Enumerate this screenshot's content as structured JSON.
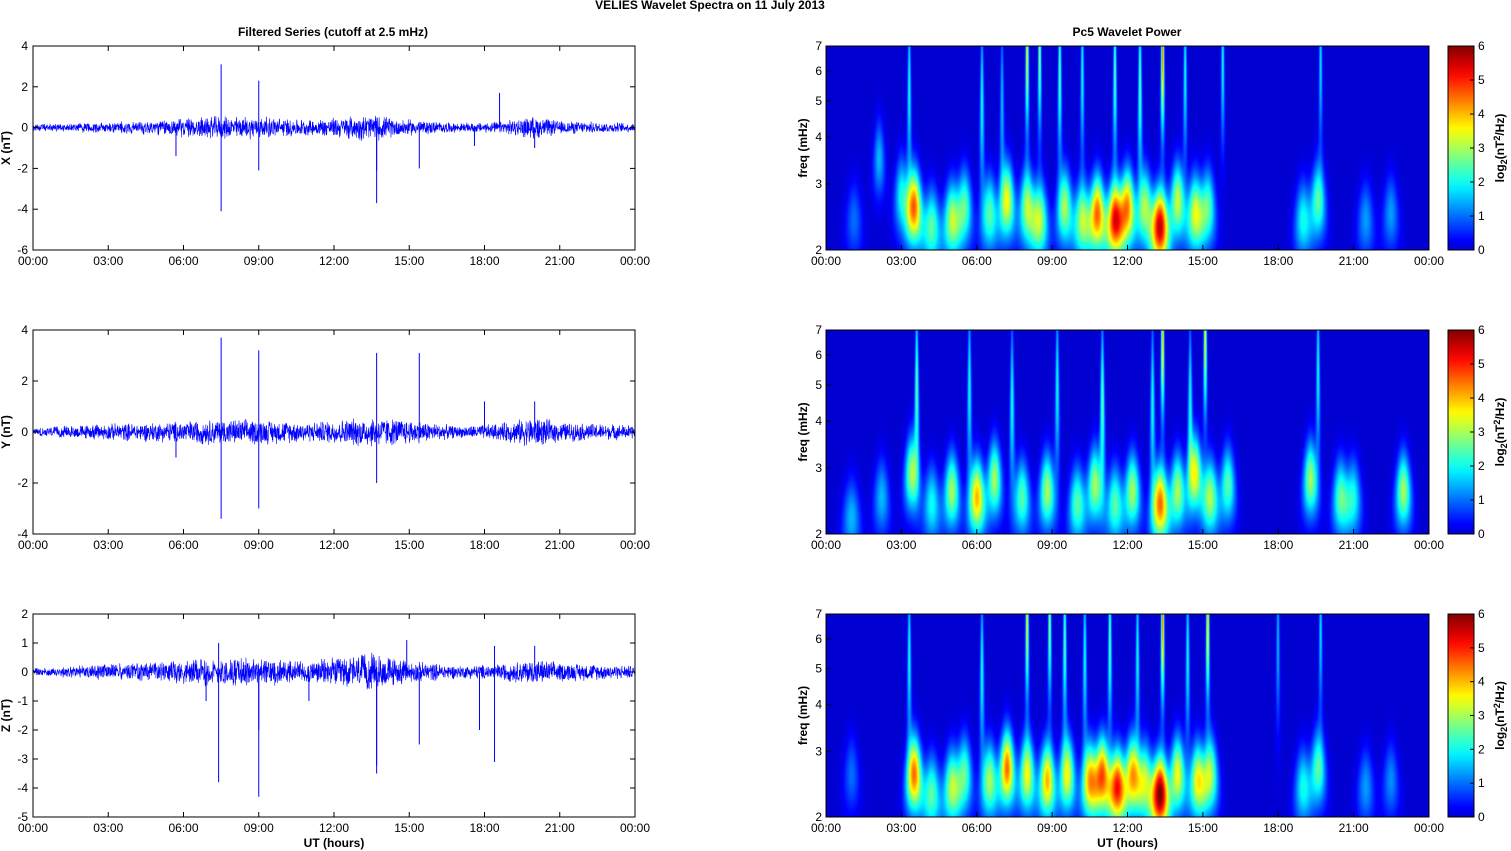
{
  "figure": {
    "suptitle": "VELIES Wavelet Spectra on 11 July      2013",
    "left_title": "Filtered Series (cutoff at 2.5 mHz)",
    "right_title": "Pc5 Wavelet Power",
    "xlabel": "UT (hours)"
  },
  "colors": {
    "series_line": "#0000ff",
    "spectrogram_background": "#00008f",
    "colormap": "jet"
  },
  "chart_data": [
    {
      "type": "line",
      "ylabel": "X (nT)",
      "xlabel": "",
      "xlim": [
        0,
        24
      ],
      "ylim": [
        -6,
        4
      ],
      "x_ticks": [
        "00:00",
        "03:00",
        "06:00",
        "09:00",
        "12:00",
        "15:00",
        "18:00",
        "21:00",
        "00:00"
      ],
      "y_ticks": [
        4,
        2,
        0,
        -2,
        -4,
        -6
      ],
      "series": [
        {
          "noise_envelope": [
            [
              0,
              0.15
            ],
            [
              3,
              0.25
            ],
            [
              5,
              0.35
            ],
            [
              7,
              0.5
            ],
            [
              9,
              0.5
            ],
            [
              11,
              0.35
            ],
            [
              13.5,
              0.6
            ],
            [
              14.5,
              0.4
            ],
            [
              17,
              0.2
            ],
            [
              18.5,
              0.25
            ],
            [
              20,
              0.5
            ],
            [
              21,
              0.3
            ],
            [
              24,
              0.2
            ]
          ],
          "spikes": [
            [
              7.5,
              3.1
            ],
            [
              7.5,
              -4.1
            ],
            [
              9,
              2.3
            ],
            [
              9,
              -2.1
            ],
            [
              13.7,
              -3.7
            ],
            [
              13.7,
              -2.1
            ],
            [
              15.4,
              -2
            ],
            [
              18.6,
              1.7
            ],
            [
              5.7,
              -1.4
            ],
            [
              17.6,
              -0.9
            ],
            [
              20,
              -1.0
            ]
          ]
        }
      ]
    },
    {
      "type": "line",
      "ylabel": "Y (nT)",
      "xlabel": "",
      "xlim": [
        0,
        24
      ],
      "ylim": [
        -4,
        4
      ],
      "x_ticks": [
        "00:00",
        "03:00",
        "06:00",
        "09:00",
        "12:00",
        "15:00",
        "18:00",
        "21:00",
        "00:00"
      ],
      "y_ticks": [
        4,
        2,
        0,
        -2,
        -4
      ],
      "series": [
        {
          "noise_envelope": [
            [
              0,
              0.15
            ],
            [
              3,
              0.3
            ],
            [
              5,
              0.35
            ],
            [
              7,
              0.45
            ],
            [
              9,
              0.45
            ],
            [
              11,
              0.35
            ],
            [
              13.5,
              0.55
            ],
            [
              15,
              0.45
            ],
            [
              17,
              0.2
            ],
            [
              18.5,
              0.3
            ],
            [
              20,
              0.55
            ],
            [
              21,
              0.35
            ],
            [
              24,
              0.25
            ]
          ],
          "spikes": [
            [
              7.5,
              3.7
            ],
            [
              7.5,
              -3.4
            ],
            [
              9,
              3.2
            ],
            [
              9,
              -3.0
            ],
            [
              13.7,
              3.1
            ],
            [
              13.7,
              -2.0
            ],
            [
              15.4,
              3.1
            ],
            [
              18,
              1.2
            ],
            [
              20,
              1.2
            ],
            [
              5.7,
              -1.0
            ]
          ]
        }
      ]
    },
    {
      "type": "line",
      "ylabel": "Z (nT)",
      "xlabel": "UT (hours)",
      "xlim": [
        0,
        24
      ],
      "ylim": [
        -5,
        2
      ],
      "x_ticks": [
        "00:00",
        "03:00",
        "06:00",
        "09:00",
        "12:00",
        "15:00",
        "18:00",
        "21:00",
        "00:00"
      ],
      "y_ticks": [
        2,
        1,
        0,
        -1,
        -2,
        -3,
        -4,
        -5
      ],
      "series": [
        {
          "noise_envelope": [
            [
              0,
              0.12
            ],
            [
              3,
              0.25
            ],
            [
              5,
              0.3
            ],
            [
              7,
              0.45
            ],
            [
              9,
              0.45
            ],
            [
              11,
              0.35
            ],
            [
              13.5,
              0.6
            ],
            [
              15,
              0.35
            ],
            [
              17,
              0.2
            ],
            [
              18.5,
              0.25
            ],
            [
              20,
              0.4
            ],
            [
              21,
              0.3
            ],
            [
              24,
              0.2
            ]
          ],
          "spikes": [
            [
              7.4,
              1.0
            ],
            [
              7.4,
              -3.8
            ],
            [
              9,
              -4.3
            ],
            [
              9,
              -2.0
            ],
            [
              13.7,
              -3.5
            ],
            [
              13.7,
              -3.2
            ],
            [
              14.9,
              1.1
            ],
            [
              15.4,
              -2.5
            ],
            [
              17.8,
              -2.0
            ],
            [
              18.4,
              -3.1
            ],
            [
              18.4,
              0.9
            ],
            [
              6.9,
              -1.0
            ],
            [
              11,
              -1.0
            ],
            [
              20,
              0.9
            ]
          ]
        }
      ]
    },
    {
      "type": "heatmap",
      "title": "Pc5 Wavelet Power",
      "ylabel": "freq (mHz)",
      "xlim": [
        0,
        24
      ],
      "ylim": [
        2,
        7
      ],
      "y_scale": "log",
      "x_ticks": [
        "00:00",
        "03:00",
        "06:00",
        "09:00",
        "12:00",
        "15:00",
        "18:00",
        "21:00",
        "00:00"
      ],
      "y_ticks": [
        7,
        6,
        5,
        4,
        3,
        2
      ],
      "colorbar_label": "log2(nT^2/Hz)",
      "colorbar_ticks": [
        6,
        5,
        4,
        3,
        2,
        1,
        0
      ],
      "clim": [
        0,
        6
      ],
      "blobs": [
        [
          3.5,
          2.6,
          4.5
        ],
        [
          4.2,
          2.3,
          2.5
        ],
        [
          5,
          2.4,
          3
        ],
        [
          5.5,
          2.6,
          2.5
        ],
        [
          6.5,
          2.5,
          2.5
        ],
        [
          7.2,
          2.7,
          3.5
        ],
        [
          8,
          2.6,
          3
        ],
        [
          8.5,
          2.4,
          3
        ],
        [
          9.5,
          2.6,
          3
        ],
        [
          10.2,
          2.4,
          3
        ],
        [
          10.8,
          2.5,
          4.5
        ],
        [
          11.5,
          2.4,
          5
        ],
        [
          12,
          2.6,
          4.2
        ],
        [
          12.7,
          2.6,
          3
        ],
        [
          13.3,
          2.3,
          5.5
        ],
        [
          14,
          2.7,
          3.2
        ],
        [
          14.7,
          2.5,
          3.3
        ],
        [
          15.2,
          2.6,
          2.5
        ],
        [
          19,
          2.4,
          2
        ],
        [
          19.6,
          2.7,
          2.5
        ],
        [
          21.5,
          2.4,
          1.3
        ],
        [
          22.5,
          2.5,
          1.3
        ],
        [
          3,
          2.8,
          2
        ],
        [
          1.1,
          2.4,
          1
        ],
        [
          2.1,
          3.5,
          1.5
        ]
      ],
      "streaks": [
        [
          8,
          7,
          3.5
        ],
        [
          8.5,
          7,
          3
        ],
        [
          13.4,
          7,
          4.5
        ],
        [
          9.3,
          6,
          2.5
        ],
        [
          11.5,
          6,
          2.5
        ],
        [
          3.3,
          5.5,
          2
        ],
        [
          6.2,
          5,
          2
        ],
        [
          12.5,
          5.5,
          2.5
        ],
        [
          14.3,
          6,
          2
        ],
        [
          15.8,
          6.5,
          2
        ],
        [
          19.7,
          6.5,
          1.8
        ],
        [
          10.2,
          6,
          2
        ],
        [
          7,
          5,
          1.5
        ]
      ]
    },
    {
      "type": "heatmap",
      "ylabel": "freq (mHz)",
      "xlim": [
        0,
        24
      ],
      "ylim": [
        2,
        7
      ],
      "y_scale": "log",
      "x_ticks": [
        "00:00",
        "03:00",
        "06:00",
        "09:00",
        "12:00",
        "15:00",
        "18:00",
        "21:00",
        "00:00"
      ],
      "y_ticks": [
        7,
        6,
        5,
        4,
        3,
        2
      ],
      "colorbar_label": "log2(nT^2/Hz)",
      "colorbar_ticks": [
        6,
        5,
        4,
        3,
        2,
        1,
        0
      ],
      "clim": [
        0,
        6
      ],
      "blobs": [
        [
          1,
          2.2,
          1.5
        ],
        [
          2.2,
          2.5,
          1.5
        ],
        [
          3.4,
          2.9,
          3
        ],
        [
          4.2,
          2.4,
          2
        ],
        [
          5,
          2.6,
          3
        ],
        [
          6,
          2.5,
          4
        ],
        [
          6.7,
          2.8,
          3
        ],
        [
          7.8,
          2.5,
          2.5
        ],
        [
          8.8,
          2.6,
          3
        ],
        [
          10,
          2.4,
          2.5
        ],
        [
          10.7,
          2.7,
          3
        ],
        [
          11.5,
          2.4,
          2.5
        ],
        [
          12.2,
          2.6,
          3
        ],
        [
          13.3,
          2.4,
          4.5
        ],
        [
          14,
          2.6,
          3
        ],
        [
          14.7,
          2.9,
          3.5
        ],
        [
          15.3,
          2.5,
          3
        ],
        [
          16,
          2.7,
          2.5
        ],
        [
          19.3,
          2.8,
          3
        ],
        [
          20.5,
          2.5,
          2.5
        ],
        [
          21,
          2.5,
          2
        ],
        [
          23,
          2.6,
          3
        ]
      ],
      "streaks": [
        [
          13.4,
          7,
          4
        ],
        [
          15.1,
          7,
          3.5
        ],
        [
          3.6,
          5,
          2.5
        ],
        [
          5.7,
          5,
          2
        ],
        [
          7.4,
          4.5,
          2
        ],
        [
          9.2,
          5,
          2
        ],
        [
          11,
          4.5,
          2.5
        ],
        [
          13,
          4.5,
          2
        ],
        [
          14.5,
          4.5,
          2
        ],
        [
          19.6,
          5.5,
          2
        ]
      ]
    },
    {
      "type": "heatmap",
      "ylabel": "freq (mHz)",
      "xlabel": "UT (hours)",
      "xlim": [
        0,
        24
      ],
      "ylim": [
        2,
        7
      ],
      "y_scale": "log",
      "x_ticks": [
        "00:00",
        "03:00",
        "06:00",
        "09:00",
        "12:00",
        "15:00",
        "18:00",
        "21:00",
        "00:00"
      ],
      "y_ticks": [
        7,
        6,
        5,
        4,
        3,
        2
      ],
      "colorbar_label": "log2(nT^2/Hz)",
      "colorbar_ticks": [
        6,
        5,
        4,
        3,
        2,
        1,
        0
      ],
      "clim": [
        0,
        6
      ],
      "blobs": [
        [
          3.5,
          2.6,
          4.5
        ],
        [
          4.2,
          2.3,
          2.5
        ],
        [
          5,
          2.4,
          3
        ],
        [
          5.5,
          2.6,
          2.5
        ],
        [
          6.5,
          2.5,
          3
        ],
        [
          7.2,
          2.7,
          4.5
        ],
        [
          8,
          2.6,
          3.5
        ],
        [
          8.8,
          2.5,
          4
        ],
        [
          9.6,
          2.6,
          3.5
        ],
        [
          10.5,
          2.5,
          4
        ],
        [
          11,
          2.6,
          4.5
        ],
        [
          11.6,
          2.4,
          5
        ],
        [
          12.2,
          2.6,
          4
        ],
        [
          12.7,
          2.5,
          3
        ],
        [
          13.3,
          2.3,
          6
        ],
        [
          14,
          2.6,
          3.5
        ],
        [
          14.8,
          2.5,
          3.5
        ],
        [
          15.3,
          2.6,
          3
        ],
        [
          19,
          2.4,
          2
        ],
        [
          19.6,
          2.7,
          2.5
        ],
        [
          21.5,
          2.4,
          1.3
        ],
        [
          22.5,
          2.5,
          1.2
        ],
        [
          1,
          2.6,
          1
        ]
      ],
      "streaks": [
        [
          8,
          7,
          3.5
        ],
        [
          8.9,
          7,
          3
        ],
        [
          13.4,
          7,
          4.5
        ],
        [
          15.2,
          7,
          4
        ],
        [
          3.3,
          5.5,
          2
        ],
        [
          6.2,
          5,
          2
        ],
        [
          9.5,
          6,
          2.5
        ],
        [
          11.3,
          6,
          2.5
        ],
        [
          12.4,
          5.5,
          2
        ],
        [
          10.3,
          5.5,
          2
        ],
        [
          14.4,
          5.5,
          2
        ],
        [
          19.7,
          6.5,
          1.8
        ],
        [
          18,
          6,
          1.5
        ]
      ]
    }
  ]
}
